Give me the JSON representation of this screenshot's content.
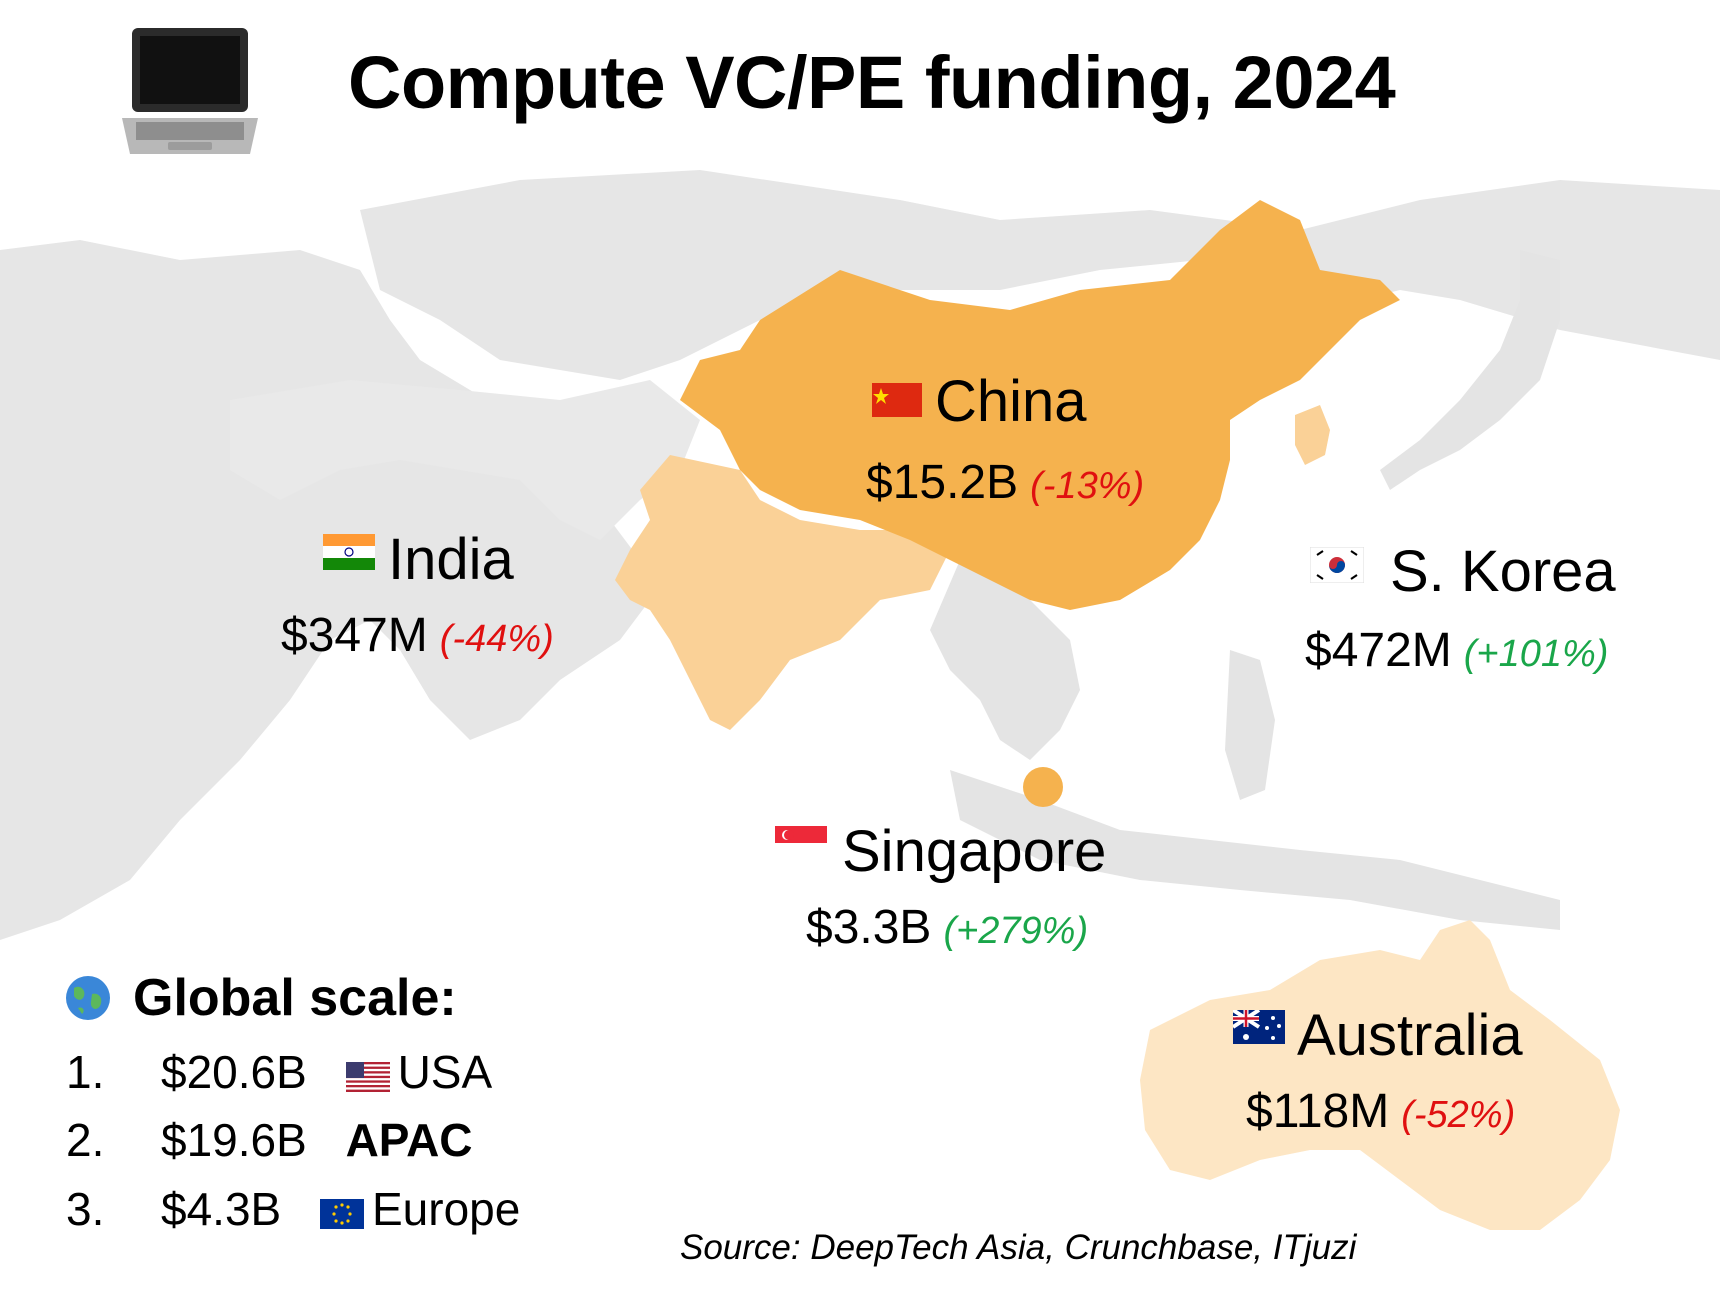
{
  "title": "Compute VC/PE funding, 2024",
  "icons": {
    "title": "laptop-icon",
    "global": "globe-icon"
  },
  "colors": {
    "china": "#f5b24e",
    "india": "#fad197",
    "korea": "#fad197",
    "singapore": "#f5b24e",
    "australia": "#fde6c4",
    "land": "#e4e4e4",
    "negative": "#e01010",
    "positive": "#1aa64a"
  },
  "countries": {
    "china": {
      "name": "China",
      "value": "$15.2B",
      "change": "(-13%)",
      "flag": "china-flag"
    },
    "india": {
      "name": "India",
      "value": "$347M",
      "change": "(-44%)",
      "flag": "india-flag"
    },
    "korea": {
      "name": "S. Korea",
      "value": "$472M",
      "change": "(+101%)",
      "flag": "south-korea-flag"
    },
    "singapore": {
      "name": "Singapore",
      "value": "$3.3B",
      "change": "(+279%)",
      "flag": "singapore-flag"
    },
    "australia": {
      "name": "Australia",
      "value": "$118M",
      "change": "(-52%)",
      "flag": "australia-flag"
    }
  },
  "global_scale": {
    "title": "Global scale:",
    "rows": [
      {
        "rank": "1.",
        "amount": "$20.6B",
        "region": "USA",
        "flag": "usa-flag"
      },
      {
        "rank": "2.",
        "amount": "$19.6B",
        "region": "APAC"
      },
      {
        "rank": "3.",
        "amount": "$4.3B",
        "region": "Europe",
        "flag": "eu-flag"
      }
    ]
  },
  "source": "Source: DeepTech Asia, Crunchbase, ITjuzi"
}
